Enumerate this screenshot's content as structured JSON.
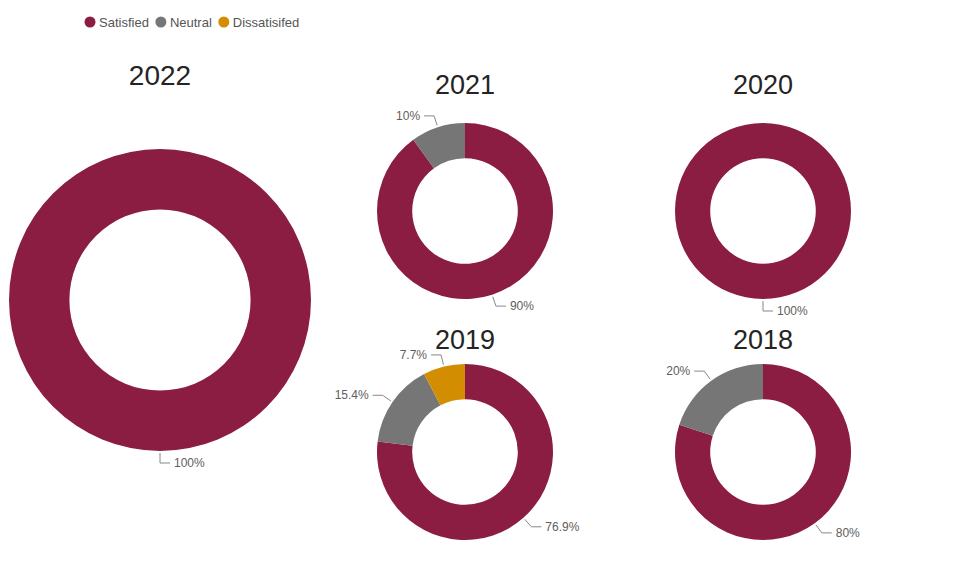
{
  "chart_data": {
    "type": "donut",
    "categories": [
      "2022",
      "2021",
      "2020",
      "2019",
      "2018"
    ],
    "series": [
      {
        "name": "Satisfied",
        "color": "#8b1c42",
        "values": [
          100,
          90,
          100,
          76.9,
          80
        ],
        "value_labels": [
          "100%",
          "90%",
          "100%",
          "76.9%",
          "80%"
        ]
      },
      {
        "name": "Neutral",
        "color": "#767676",
        "values": [
          0,
          10,
          0,
          15.4,
          20
        ],
        "value_labels": [
          null,
          "10%",
          null,
          "15.4%",
          "20%"
        ]
      },
      {
        "name": "Dissatisifed",
        "color": "#d38d00",
        "values": [
          0,
          0,
          0,
          7.7,
          0
        ],
        "value_labels": [
          null,
          null,
          null,
          "7.7%",
          null
        ]
      }
    ],
    "legend": "top-left",
    "data_labels": true
  }
}
